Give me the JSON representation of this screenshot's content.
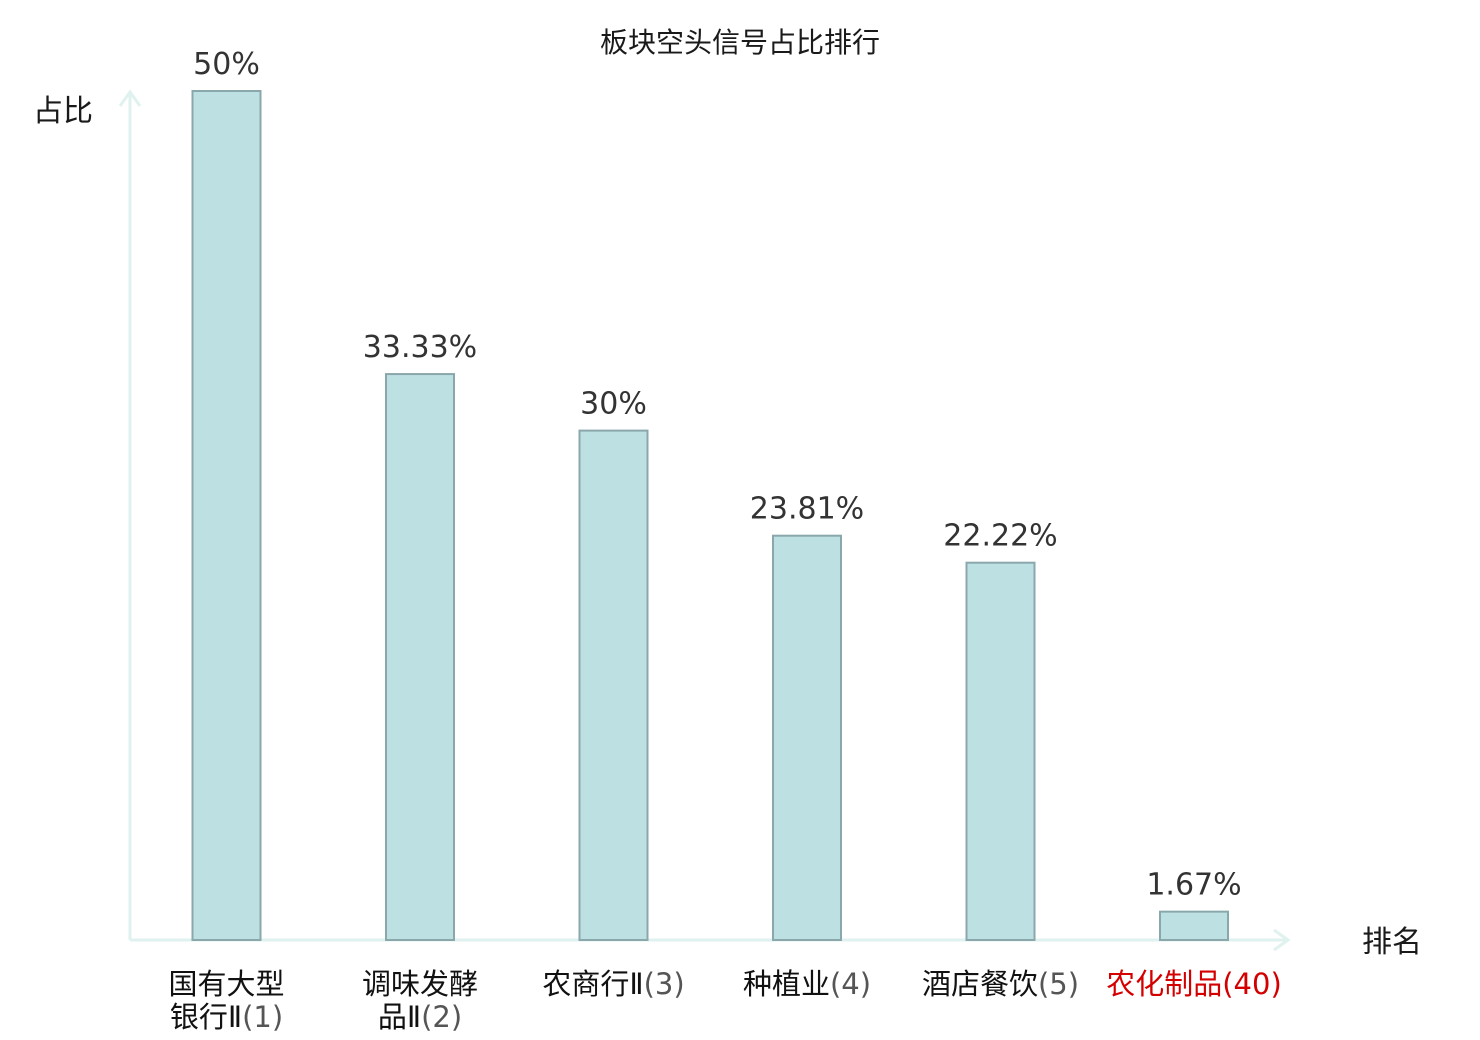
{
  "colors": {
    "bar_fill": "#bde0e3",
    "bar_stroke": "#8aa7ab",
    "axis": "#e0f2ef",
    "highlight": "#d40000"
  },
  "chart_data": {
    "type": "bar",
    "title": "板块空头信号占比排行",
    "ylabel": "占比",
    "xlabel": "排名",
    "ylim": [
      0,
      50
    ],
    "grid": false,
    "categories": [
      {
        "lines": [
          "国有大型",
          "银行Ⅱ"
        ],
        "rank": "(1)",
        "highlight": false
      },
      {
        "lines": [
          "调味发酵",
          "品Ⅱ"
        ],
        "rank": "(2)",
        "highlight": false
      },
      {
        "lines": [
          "农商行Ⅱ"
        ],
        "rank": "(3)",
        "highlight": false
      },
      {
        "lines": [
          "种植业"
        ],
        "rank": "(4)",
        "highlight": false
      },
      {
        "lines": [
          "酒店餐饮"
        ],
        "rank": "(5)",
        "highlight": false
      },
      {
        "lines": [
          "农化制品"
        ],
        "rank": "(40)",
        "highlight": true
      }
    ],
    "values": [
      50,
      33.33,
      30,
      23.81,
      22.22,
      1.67
    ],
    "value_labels": [
      "50%",
      "33.33%",
      "30%",
      "23.81%",
      "22.22%",
      "1.67%"
    ]
  }
}
